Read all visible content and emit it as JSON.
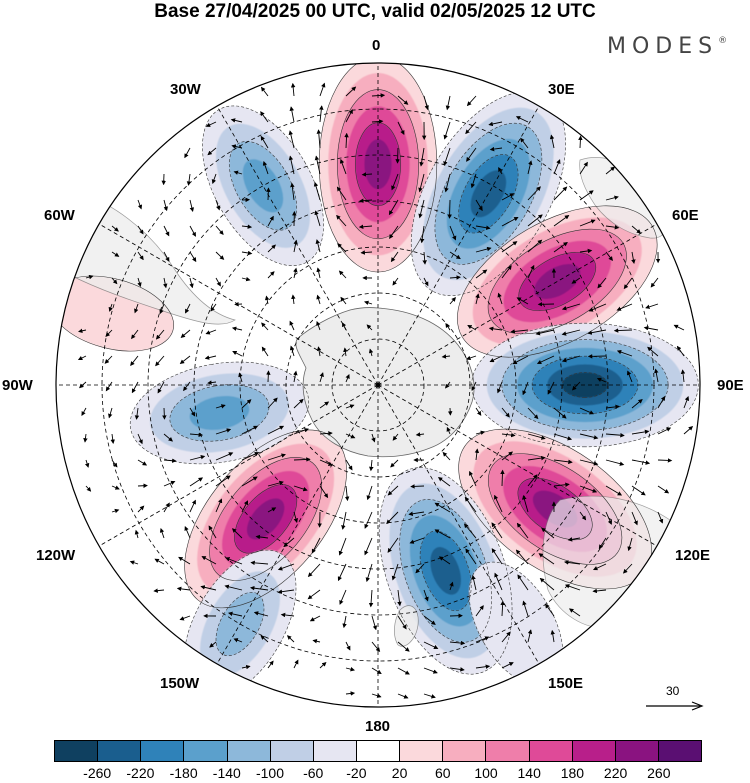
{
  "title": "Base 27/04/2025 00 UTC, valid 02/05/2025 12 UTC",
  "brand": {
    "name": "MODES",
    "mark": "®"
  },
  "longitude_labels": {
    "north": "0",
    "ne30": "30E",
    "ne60": "60E",
    "east": "90E",
    "se120": "120E",
    "se150": "150E",
    "south": "180",
    "sw150": "150W",
    "sw120": "120W",
    "west": "90W",
    "nw60": "60W",
    "nw30": "30W"
  },
  "reference_vector": {
    "value": "30"
  },
  "colorbar": {
    "colors": [
      "#0f4060",
      "#1a5e8e",
      "#2f82b9",
      "#5ba0cc",
      "#8db8da",
      "#c0cfe6",
      "#e6e6f2",
      "#ffffff",
      "#fbd9dc",
      "#f7aebf",
      "#ef7eaa",
      "#df4a98",
      "#b81f8a",
      "#8a1380",
      "#5a0f72"
    ],
    "ticks": [
      "-260",
      "-220",
      "-180",
      "-140",
      "-100",
      "-60",
      "-20",
      "20",
      "60",
      "100",
      "140",
      "180",
      "220",
      "260"
    ]
  },
  "anomaly_centers": [
    {
      "lon": -30,
      "lat": -40,
      "value": -150
    },
    {
      "lon": 0,
      "lat": -42,
      "value": 240
    },
    {
      "lon": 30,
      "lat": -42,
      "value": -260
    },
    {
      "lon": 60,
      "lat": -45,
      "value": 250
    },
    {
      "lon": 90,
      "lat": -45,
      "value": -265
    },
    {
      "lon": 125,
      "lat": -43,
      "value": 250
    },
    {
      "lon": 160,
      "lat": -47,
      "value": -240
    },
    {
      "lon": -140,
      "lat": -52,
      "value": 230
    },
    {
      "lon": -100,
      "lat": -55,
      "value": -160
    },
    {
      "lon": -150,
      "lat": -30,
      "value": -120
    },
    {
      "lon": 150,
      "lat": -30,
      "value": -60
    },
    {
      "lon": -75,
      "lat": -30,
      "value": 40
    }
  ]
}
